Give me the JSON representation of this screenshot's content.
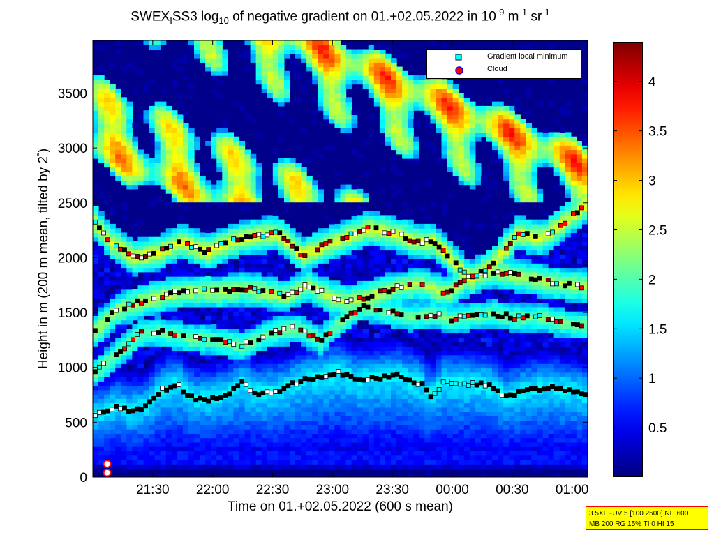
{
  "title": {
    "prefix": "SWEX",
    "sub1": "I",
    "mid": "SS3 log",
    "sub2": "10",
    "rest": " of negative gradient on 01.+02.05.2022 in 10",
    "sup1": "-9",
    "unit_m": " m",
    "sup2": "-1",
    "unit_sr": " sr",
    "sup3": "-1"
  },
  "xlabel": "Time on 01.+02.05.2022 (600 s mean)",
  "ylabel": {
    "text": "Height in m (200 m mean, tilted by 2",
    "degree": "°",
    "close": ")"
  },
  "legend": {
    "items": [
      {
        "label": "Gradient local minimum",
        "marker": "cyan-square",
        "color": "#00ffff"
      },
      {
        "label": "Cloud",
        "marker": "red-circle",
        "color": "#ff0000"
      }
    ]
  },
  "info_box": {
    "line1": "3.5XEFUV 5 [100 2500] NH 600",
    "line2": "MB 200 RG 15% TI 0 HI 15"
  },
  "colors": {
    "background": "#00008f",
    "colormap": "jet",
    "info_box_bg": "#ffff00",
    "info_box_border": "#ff0000"
  },
  "chart_data": {
    "type": "heatmap",
    "colormap": "jet",
    "x_axis": {
      "label": "Time on 01.+02.05.2022 (600 s mean)",
      "range_hours": [
        21.0,
        25.13
      ],
      "ticks": [
        {
          "value": 21.5,
          "label": "21:30"
        },
        {
          "value": 22.0,
          "label": "22:00"
        },
        {
          "value": 22.5,
          "label": "22:30"
        },
        {
          "value": 23.0,
          "label": "23:00"
        },
        {
          "value": 23.5,
          "label": "23:30"
        },
        {
          "value": 24.0,
          "label": "00:00"
        },
        {
          "value": 24.5,
          "label": "00:30"
        },
        {
          "value": 25.0,
          "label": "01:00"
        }
      ]
    },
    "y_axis": {
      "label": "Height in m (200 m mean, tilted by 2°)",
      "range": [
        0,
        3980
      ],
      "ticks": [
        0,
        500,
        1000,
        1500,
        2000,
        2500,
        3000,
        3500
      ]
    },
    "colorbar": {
      "range": [
        0,
        4.4
      ],
      "ticks": [
        0.5,
        1,
        1.5,
        2,
        2.5,
        3,
        3.5,
        4
      ]
    },
    "clouds": [
      {
        "x": 21.12,
        "y": 120
      },
      {
        "x": 21.12,
        "y": 40
      }
    ],
    "layers": [
      {
        "name": "low",
        "points": [
          [
            21.0,
            560
          ],
          [
            21.1,
            590
          ],
          [
            21.2,
            640
          ],
          [
            21.3,
            600
          ],
          [
            21.45,
            640
          ],
          [
            21.55,
            780
          ],
          [
            21.7,
            850
          ],
          [
            21.85,
            700
          ],
          [
            22.0,
            710
          ],
          [
            22.15,
            770
          ],
          [
            22.25,
            860
          ],
          [
            22.35,
            760
          ],
          [
            22.55,
            780
          ],
          [
            22.7,
            860
          ],
          [
            22.9,
            920
          ],
          [
            23.05,
            960
          ],
          [
            23.2,
            880
          ],
          [
            23.35,
            900
          ],
          [
            23.55,
            920
          ],
          [
            23.75,
            840
          ],
          [
            23.82,
            720
          ],
          [
            23.92,
            860
          ],
          [
            24.1,
            860
          ],
          [
            24.3,
            840
          ],
          [
            24.45,
            730
          ],
          [
            24.6,
            790
          ],
          [
            24.8,
            820
          ],
          [
            25.0,
            780
          ],
          [
            25.13,
            740
          ]
        ]
      },
      {
        "name": "mid",
        "points": [
          [
            21.0,
            940
          ],
          [
            21.1,
            1030
          ],
          [
            21.4,
            1310
          ],
          [
            21.55,
            1330
          ],
          [
            21.8,
            1270
          ],
          [
            21.95,
            1260
          ],
          [
            22.25,
            1200
          ],
          [
            22.5,
            1320
          ],
          [
            22.7,
            1360
          ],
          [
            22.9,
            1250
          ],
          [
            23.05,
            1400
          ],
          [
            23.25,
            1560
          ],
          [
            23.45,
            1510
          ],
          [
            23.65,
            1460
          ],
          [
            23.85,
            1480
          ],
          [
            24.0,
            1440
          ],
          [
            24.2,
            1470
          ],
          [
            24.35,
            1490
          ],
          [
            24.55,
            1450
          ],
          [
            24.75,
            1460
          ],
          [
            24.95,
            1400
          ],
          [
            25.13,
            1390
          ]
        ]
      },
      {
        "name": "upper",
        "points": [
          [
            21.0,
            1310
          ],
          [
            21.2,
            1520
          ],
          [
            21.45,
            1620
          ],
          [
            21.7,
            1680
          ],
          [
            21.9,
            1700
          ],
          [
            22.05,
            1690
          ],
          [
            22.25,
            1720
          ],
          [
            22.4,
            1700
          ],
          [
            22.6,
            1650
          ],
          [
            22.8,
            1750
          ],
          [
            23.0,
            1630
          ],
          [
            23.15,
            1600
          ],
          [
            23.3,
            1650
          ],
          [
            23.55,
            1730
          ],
          [
            23.75,
            1760
          ],
          [
            23.95,
            1680
          ],
          [
            24.15,
            1820
          ],
          [
            24.35,
            1870
          ],
          [
            24.6,
            1830
          ],
          [
            24.8,
            1780
          ],
          [
            25.0,
            1750
          ],
          [
            25.13,
            1740
          ]
        ]
      },
      {
        "name": "high",
        "points": [
          [
            21.0,
            2350
          ],
          [
            21.15,
            2150
          ],
          [
            21.35,
            2000
          ],
          [
            21.55,
            2050
          ],
          [
            21.75,
            2150
          ],
          [
            21.95,
            2050
          ],
          [
            22.15,
            2150
          ],
          [
            22.35,
            2200
          ],
          [
            22.55,
            2220
          ],
          [
            22.75,
            2020
          ],
          [
            22.95,
            2120
          ],
          [
            23.15,
            2200
          ],
          [
            23.3,
            2270
          ],
          [
            23.5,
            2230
          ],
          [
            23.7,
            2150
          ],
          [
            23.85,
            2150
          ],
          [
            24.0,
            1980
          ],
          [
            24.15,
            1800
          ],
          [
            24.35,
            1960
          ],
          [
            24.55,
            2220
          ],
          [
            24.75,
            2180
          ],
          [
            24.95,
            2340
          ],
          [
            25.13,
            2490
          ]
        ]
      }
    ]
  }
}
